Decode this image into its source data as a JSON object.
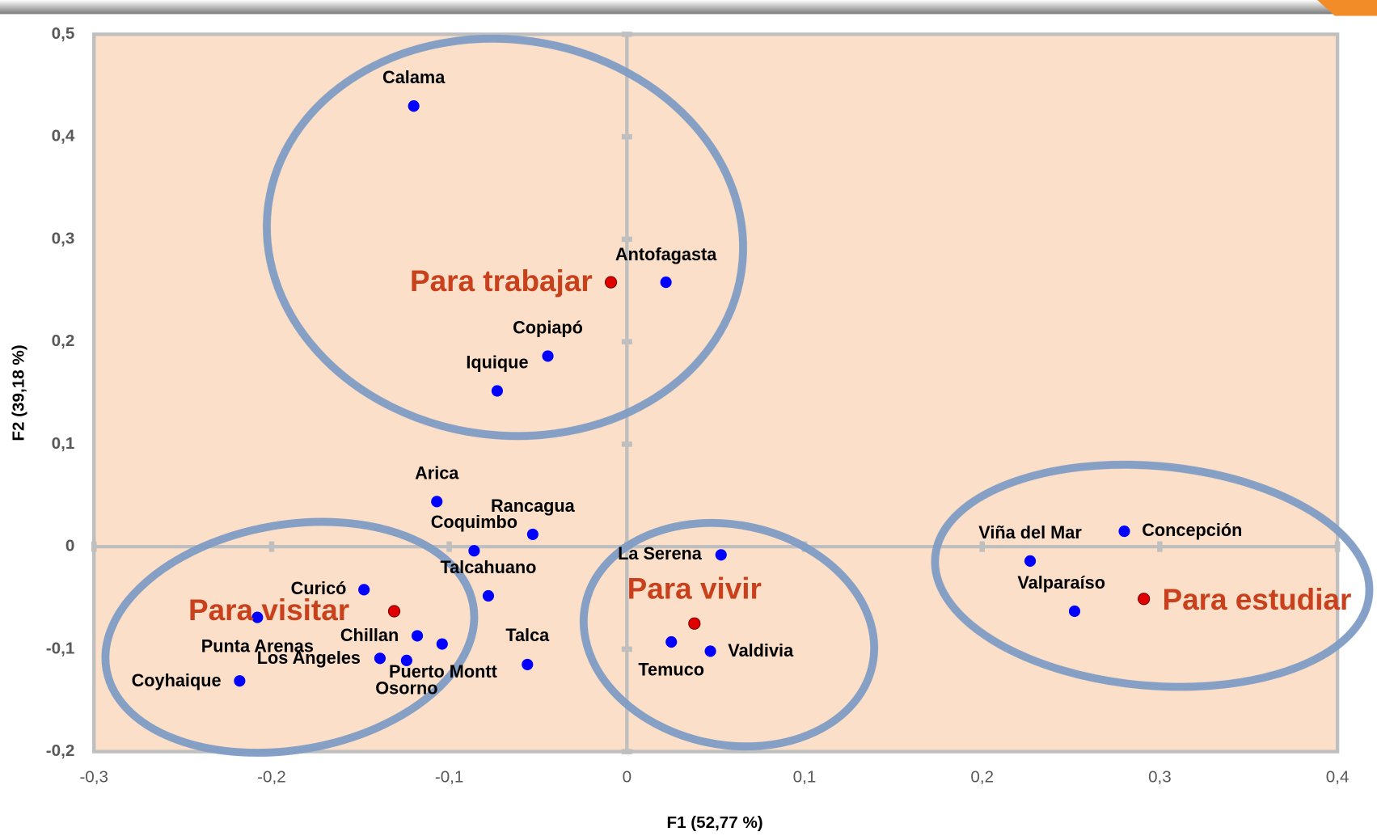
{
  "chart_data": {
    "type": "scatter",
    "x_label": "F1 (52,77 %)",
    "y_label": "F2 (39,18 %)",
    "xlim": [
      -0.3,
      0.4
    ],
    "ylim": [
      -0.2,
      0.5
    ],
    "xticks": [
      {
        "value": -0.3,
        "label": "-0,3"
      },
      {
        "value": -0.2,
        "label": "-0,2"
      },
      {
        "value": -0.1,
        "label": "-0,1"
      },
      0,
      {
        "value": 0.1,
        "label": "0,1"
      },
      {
        "value": 0.2,
        "label": "0,2"
      },
      {
        "value": 0.3,
        "label": "0,3"
      },
      {
        "value": 0.4,
        "label": "0,4"
      }
    ],
    "yticks": [
      {
        "value": -0.2,
        "label": "-0,2"
      },
      {
        "value": -0.1,
        "label": "-0,1"
      },
      0,
      {
        "value": 0.1,
        "label": "0,1"
      },
      {
        "value": 0.2,
        "label": "0,2"
      },
      {
        "value": 0.3,
        "label": "0,3"
      },
      {
        "value": 0.4,
        "label": "0,4"
      },
      {
        "value": 0.5,
        "label": "0,5"
      }
    ],
    "background": "#fbdfc8",
    "cities": {
      "color": "#0000ff",
      "labels": [
        "Calama",
        "Antofagasta",
        "Copiapó",
        "Iquique",
        "Arica",
        "Rancagua",
        "Coquimbo",
        "Talcahuano",
        "Curicó",
        "Punta Arenas",
        "Chillan",
        "Los Angeles",
        "Osorno",
        "Puerto Montt",
        "Coyhaique",
        "Talca",
        "La Serena",
        "Temuco",
        "Valdivia",
        "Viña del Mar",
        "Concepción",
        "Valparaíso"
      ],
      "x": [
        -0.12,
        0.022,
        -0.0445,
        -0.073,
        -0.107,
        -0.053,
        -0.086,
        -0.078,
        -0.148,
        -0.208,
        -0.118,
        -0.139,
        -0.124,
        -0.104,
        -0.218,
        -0.056,
        0.053,
        0.025,
        0.047,
        0.227,
        0.28,
        0.252
      ],
      "y": [
        0.43,
        0.258,
        0.186,
        0.152,
        0.044,
        0.012,
        -0.004,
        -0.048,
        -0.042,
        -0.069,
        -0.087,
        -0.109,
        -0.111,
        -0.095,
        -0.131,
        -0.115,
        -0.008,
        -0.093,
        -0.102,
        -0.014,
        0.015,
        -0.063
      ]
    },
    "purposes": {
      "color": "#e00000",
      "labels": [
        "Para trabajar",
        "Para visitar",
        "Para vivir",
        "Para estudiar"
      ],
      "x": [
        -0.009,
        -0.131,
        0.038,
        0.291
      ],
      "y": [
        0.258,
        -0.063,
        -0.075,
        -0.051
      ]
    }
  }
}
